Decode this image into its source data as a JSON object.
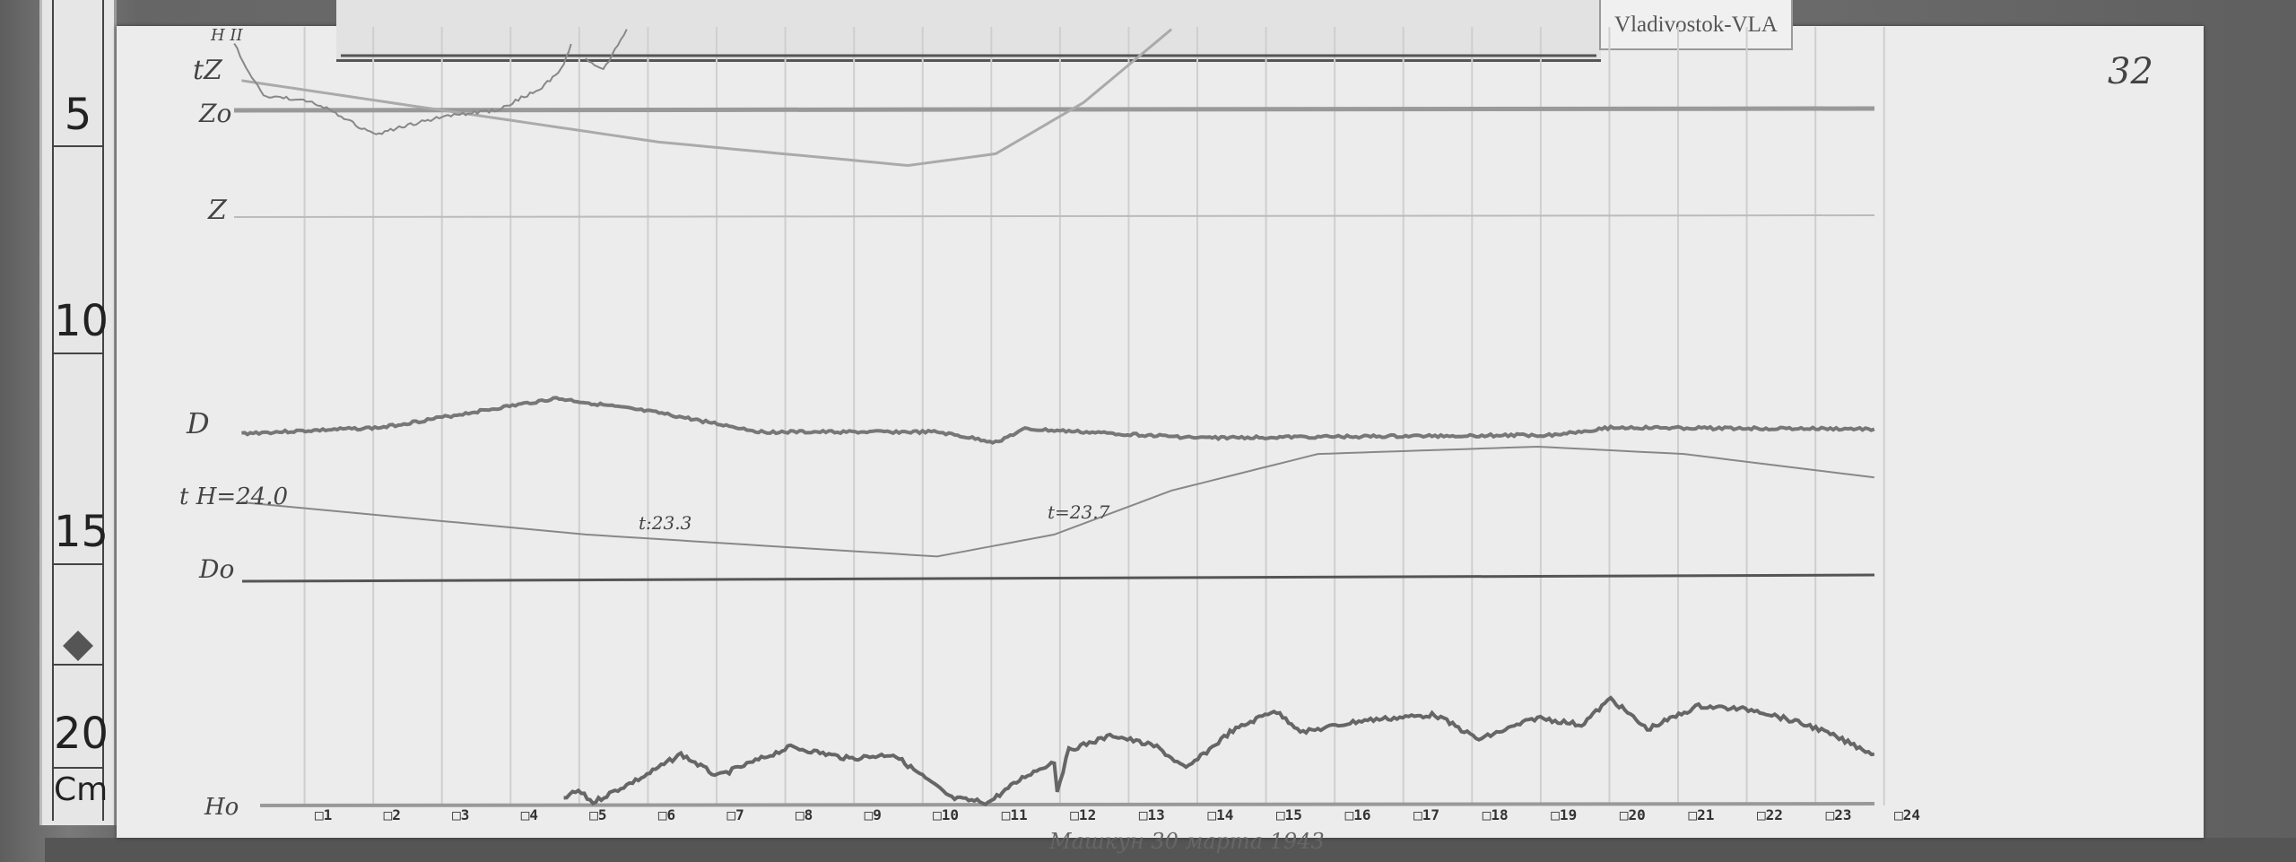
{
  "station_label": "Vladivostok-VLA",
  "sheet_number": "32",
  "ruler": {
    "marks": [
      "5",
      "10",
      "15",
      "20"
    ],
    "unit": "Cm"
  },
  "traces": {
    "z_temp_label": "tZ",
    "z_base_label": "Zo",
    "z_label": "Z",
    "h_top_label": "H II",
    "d_label": "D",
    "h_temp_label": "t H=24.0",
    "d_base_label": "Do",
    "h_base_label": "Ho",
    "temp_mid_1": "t:23.3",
    "temp_mid_2": "t=23.7"
  },
  "hours": [
    "1",
    "2",
    "3",
    "4",
    "5",
    "6",
    "7",
    "8",
    "9",
    "10",
    "11",
    "12",
    "13",
    "14",
    "15",
    "16",
    "17",
    "18",
    "19",
    "20",
    "21",
    "22",
    "23",
    "24"
  ],
  "signature": "Машкун 30 марта 1943"
}
